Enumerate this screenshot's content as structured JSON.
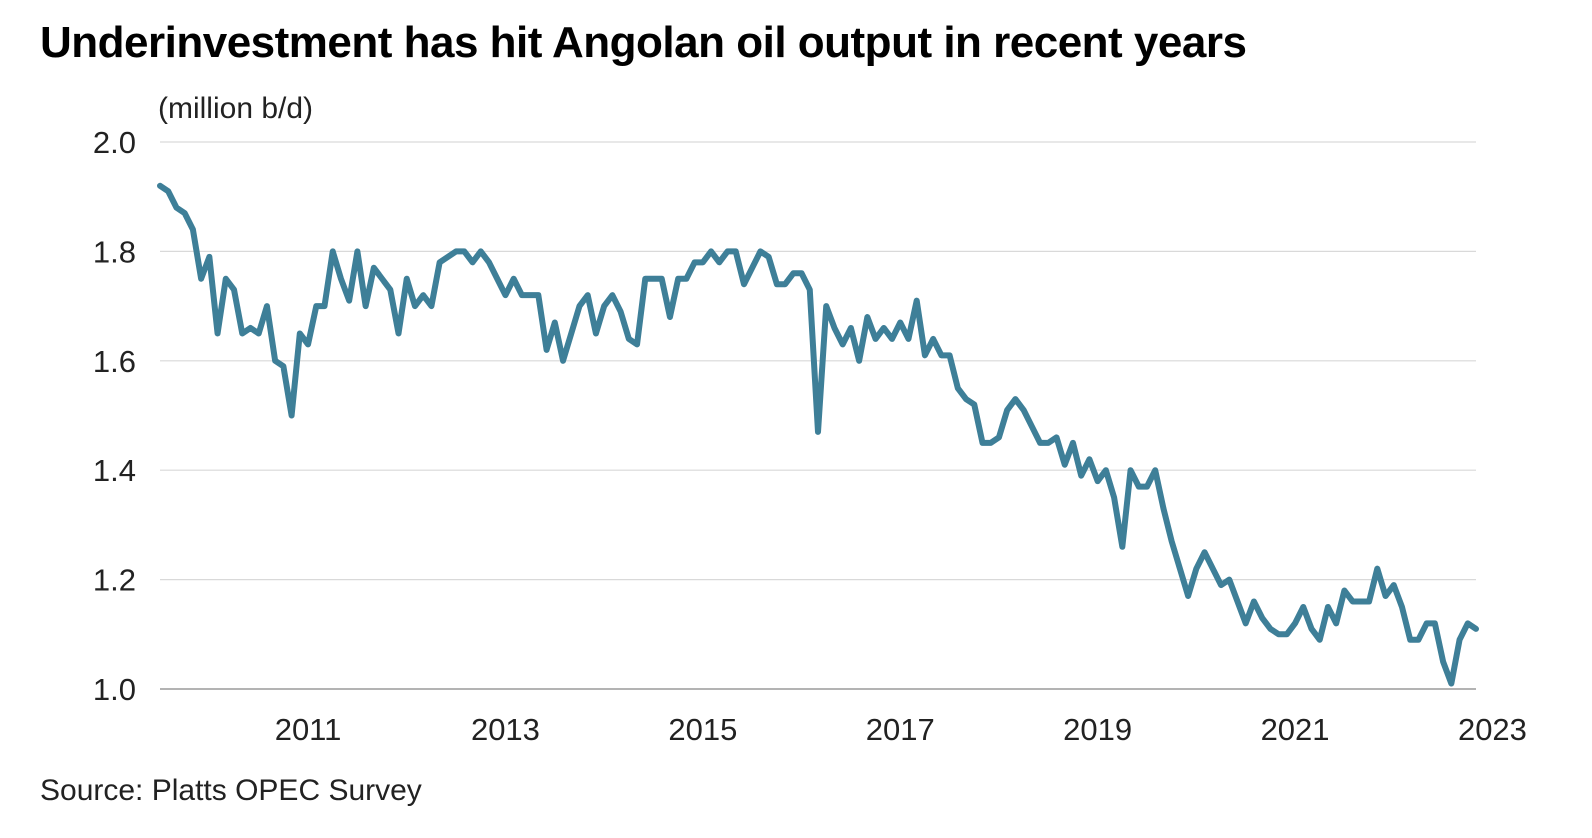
{
  "chart_data": {
    "type": "line",
    "title": "Underinvestment has hit Angolan oil output in recent years",
    "ylabel": "(million b/d)",
    "source": "Source: Platts OPEC Survey",
    "ylim": [
      1.0,
      2.0
    ],
    "yticks": [
      "1.0",
      "1.2",
      "1.4",
      "1.6",
      "1.8",
      "2.0"
    ],
    "xticks": [
      "2011",
      "2013",
      "2015",
      "2017",
      "2019",
      "2021",
      "2023"
    ],
    "x_start": "2010-01",
    "grid": true,
    "series": [
      {
        "color": "#3e7f98",
        "values": [
          1.92,
          1.91,
          1.88,
          1.87,
          1.84,
          1.75,
          1.79,
          1.65,
          1.75,
          1.73,
          1.65,
          1.66,
          1.65,
          1.7,
          1.6,
          1.59,
          1.5,
          1.65,
          1.63,
          1.7,
          1.7,
          1.8,
          1.75,
          1.71,
          1.8,
          1.7,
          1.77,
          1.75,
          1.73,
          1.65,
          1.75,
          1.7,
          1.72,
          1.7,
          1.78,
          1.79,
          1.8,
          1.8,
          1.78,
          1.8,
          1.78,
          1.75,
          1.72,
          1.75,
          1.72,
          1.72,
          1.72,
          1.62,
          1.67,
          1.6,
          1.65,
          1.7,
          1.72,
          1.65,
          1.7,
          1.72,
          1.69,
          1.64,
          1.63,
          1.75,
          1.75,
          1.75,
          1.68,
          1.75,
          1.75,
          1.78,
          1.78,
          1.8,
          1.78,
          1.8,
          1.8,
          1.74,
          1.77,
          1.8,
          1.79,
          1.74,
          1.74,
          1.76,
          1.76,
          1.73,
          1.47,
          1.7,
          1.66,
          1.63,
          1.66,
          1.6,
          1.68,
          1.64,
          1.66,
          1.64,
          1.67,
          1.64,
          1.71,
          1.61,
          1.64,
          1.61,
          1.61,
          1.55,
          1.53,
          1.52,
          1.45,
          1.45,
          1.46,
          1.51,
          1.53,
          1.51,
          1.48,
          1.45,
          1.45,
          1.46,
          1.41,
          1.45,
          1.39,
          1.42,
          1.38,
          1.4,
          1.35,
          1.26,
          1.4,
          1.37,
          1.37,
          1.4,
          1.33,
          1.27,
          1.22,
          1.17,
          1.22,
          1.25,
          1.22,
          1.19,
          1.2,
          1.16,
          1.12,
          1.16,
          1.13,
          1.11,
          1.1,
          1.1,
          1.12,
          1.15,
          1.11,
          1.09,
          1.15,
          1.12,
          1.18,
          1.16,
          1.16,
          1.16,
          1.22,
          1.17,
          1.19,
          1.15,
          1.09,
          1.09,
          1.12,
          1.12,
          1.05,
          1.01,
          1.09,
          1.12,
          1.11
        ]
      }
    ]
  }
}
